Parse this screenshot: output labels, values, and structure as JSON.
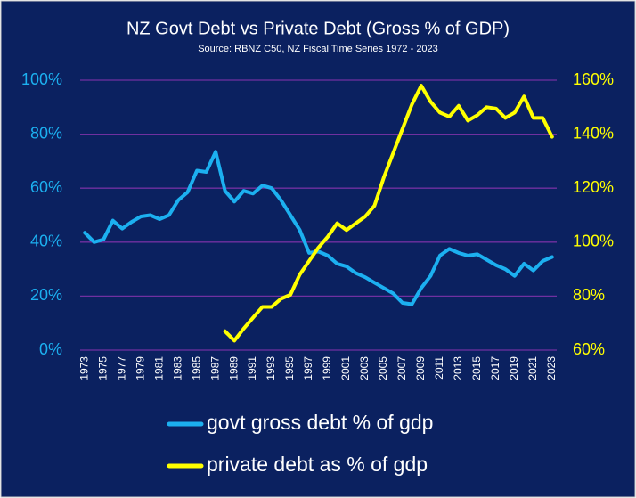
{
  "chart_data": {
    "type": "line",
    "title": "NZ Govt Debt vs Private Debt (Gross % of GDP)",
    "subtitle": "Source: RBNZ C50, NZ Fiscal Time Series 1972 - 2023",
    "categories": [
      "1973",
      null,
      "1975",
      null,
      "1977",
      null,
      "1979",
      null,
      "1981",
      null,
      "1983",
      null,
      "1985",
      null,
      "1987",
      null,
      "1989",
      null,
      "1991",
      null,
      "1993",
      null,
      "1995",
      null,
      "1997",
      null,
      "1999",
      null,
      "2001",
      null,
      "2003",
      null,
      "2005",
      null,
      "2007",
      null,
      "2009",
      null,
      "2011",
      null,
      "2013",
      null,
      "2015",
      null,
      "2017",
      null,
      "2019",
      null,
      "2021",
      null,
      "2023"
    ],
    "series": [
      {
        "name": "govt gross debt % of gdp",
        "color": "#1cb0f0",
        "values": [
          43.5,
          40,
          41,
          48,
          45,
          47.5,
          49.5,
          50,
          48.5,
          50,
          55.5,
          58.5,
          66.5,
          66,
          73.5,
          59,
          55,
          59,
          58,
          61,
          60,
          55.5,
          50,
          44.5,
          36,
          36.5,
          35,
          32,
          31,
          28.5,
          27,
          25,
          23,
          21,
          17.5,
          17,
          23,
          27.5,
          35,
          37.5,
          36,
          35,
          35.5,
          33.5,
          31.5,
          30,
          27.5,
          32,
          29.5,
          33,
          34.5
        ]
      },
      {
        "name": "private debt as % of gdp",
        "color": "#ffff00",
        "axis": "y2",
        "values": [
          null,
          null,
          null,
          null,
          null,
          null,
          null,
          null,
          null,
          null,
          null,
          null,
          null,
          null,
          null,
          67,
          63.5,
          68,
          72,
          76,
          76,
          79,
          80.5,
          88,
          93,
          98,
          102,
          107,
          104.5,
          107,
          109.5,
          113.5,
          124,
          133,
          142,
          151,
          158,
          152,
          148,
          146.5,
          150.5,
          145,
          147,
          150,
          149.5,
          146,
          148,
          154,
          146,
          146,
          139
        ]
      }
    ],
    "ylim": [
      0,
      100
    ],
    "yticks": [
      {
        "value": 0,
        "label": "0%"
      },
      {
        "value": 20,
        "label": "20%"
      },
      {
        "value": 40,
        "label": "40%"
      },
      {
        "value": 60,
        "label": "60%"
      },
      {
        "value": 80,
        "label": "80%"
      },
      {
        "value": 100,
        "label": "100%"
      }
    ],
    "y2lim": [
      60,
      160
    ],
    "y2ticks": [
      {
        "value": 60,
        "label": "60%"
      },
      {
        "value": 80,
        "label": "80%"
      },
      {
        "value": 100,
        "label": "100%"
      },
      {
        "value": 120,
        "label": "120%"
      },
      {
        "value": 140,
        "label": "140%"
      },
      {
        "value": 160,
        "label": "160%"
      }
    ],
    "grid": true,
    "legend": "bottom"
  }
}
